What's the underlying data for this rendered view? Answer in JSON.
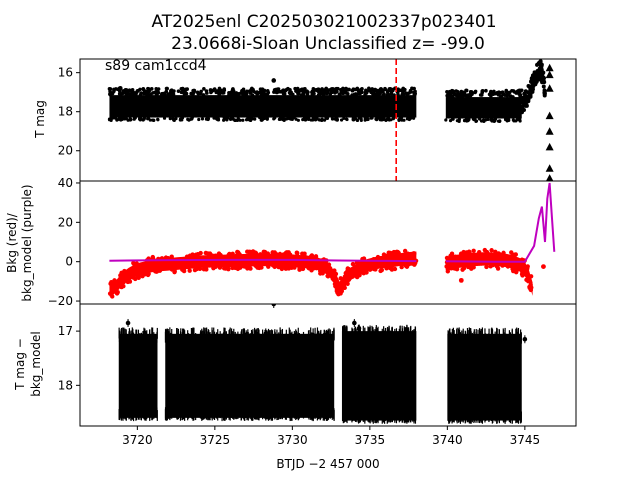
{
  "figure": {
    "title_line1": "AT2025enl  C202503021002337p023401",
    "title_line2": "23.0668i-Sloan Unclassified z= -99.0",
    "xlabel": "BTJD −2 457 000"
  },
  "chart_data": [
    {
      "type": "scatter",
      "panel": "top",
      "ylabel": "T mag",
      "annotation": "s89 cam1ccd4",
      "xlim": [
        3716.3,
        3748.3
      ],
      "ylim": [
        21.55,
        15.3
      ],
      "yticks": [
        16,
        18,
        20
      ],
      "ytick_labels": [
        "16",
        "18",
        "20"
      ],
      "vline": {
        "x": 3736.7,
        "color": "#ff0000",
        "style": "dashed"
      },
      "band_segments": [
        {
          "x0": 3718.2,
          "x1": 3738.0,
          "top": 17.15,
          "bottom": 18.3
        },
        {
          "x0": 3739.9,
          "x1": 3744.8,
          "top": 17.25,
          "bottom": 18.35
        }
      ],
      "rise": [
        [
          3744.8,
          17.7
        ],
        [
          3745.2,
          17.2
        ],
        [
          3745.5,
          16.6
        ],
        [
          3745.8,
          16.0
        ],
        [
          3746.0,
          15.8
        ],
        [
          3746.2,
          16.3
        ],
        [
          3746.3,
          16.9
        ]
      ],
      "outliers": [
        [
          3718.9,
          16.8
        ],
        [
          3728.8,
          16.4
        ]
      ],
      "upper_limits_x": 3746.6,
      "upper_limits": [
        15.75,
        16.1,
        16.8,
        18.2,
        19.0,
        19.8,
        20.9,
        21.4
      ]
    },
    {
      "type": "scatter",
      "panel": "middle",
      "ylabel_line1": "Bkg (red)/",
      "ylabel_line2": "bkg_model (purple)",
      "xlim": [
        3716.3,
        3748.3
      ],
      "ylim": [
        -21.5,
        41.0
      ],
      "yticks": [
        -20,
        0,
        20,
        40
      ],
      "ytick_labels": [
        "−20",
        "0",
        "20",
        "40"
      ],
      "bkg_red_segments": [
        {
          "x": [
            3718.2,
            3718.6,
            3719.0,
            3719.5,
            3720.0,
            3721.0,
            3722.5,
            3724.0,
            3726.0,
            3728.0,
            3730.0,
            3731.5,
            3732.3,
            3732.8,
            3733.0,
            3733.6,
            3734.5,
            3735.5,
            3736.5,
            3737.3,
            3738.0
          ],
          "y": [
            -14.5,
            -13.0,
            -9.0,
            -6.0,
            -4.0,
            -2.0,
            -1.0,
            0.0,
            0.5,
            1.0,
            0.5,
            -0.5,
            -3.5,
            -9.0,
            -14.0,
            -7.0,
            -2.5,
            -0.5,
            0.5,
            1.5,
            2.0
          ],
          "spread": 3.2
        },
        {
          "x": [
            3739.9,
            3740.5,
            3741.5,
            3742.5,
            3743.5,
            3744.2,
            3744.8,
            3745.2,
            3745.5
          ],
          "y": [
            -1.0,
            0.0,
            1.0,
            1.5,
            1.0,
            0.0,
            -2.0,
            -6.0,
            -14.0
          ],
          "spread": 3.4
        }
      ],
      "red_outliers": [
        [
          3740.9,
          -9.5
        ],
        [
          3746.2,
          -2.5
        ]
      ],
      "bkg_model": {
        "x": [
          3718.2,
          3722.0,
          3726.0,
          3730.0,
          3733.0,
          3736.0,
          3738.0,
          3739.9,
          3743.0,
          3745.0,
          3745.6,
          3745.9,
          3746.1,
          3746.3,
          3746.45,
          3746.6,
          3746.75,
          3746.9
        ],
        "y": [
          0.5,
          0.8,
          0.9,
          0.9,
          0.6,
          0.4,
          0.3,
          0.2,
          0.0,
          0.0,
          8.0,
          22.0,
          28.0,
          10.0,
          32.0,
          40.0,
          22.0,
          5.0
        ],
        "color": "#bf00bf"
      }
    },
    {
      "type": "scatter",
      "panel": "bottom",
      "ylabel_line1": "T mag −",
      "ylabel_line2": "bkg_model",
      "xlim": [
        3716.3,
        3748.3
      ],
      "ylim": [
        18.75,
        16.5
      ],
      "yticks": [
        17,
        18
      ],
      "ytick_labels": [
        "17",
        "18"
      ],
      "band_segments": [
        {
          "x0": 3718.8,
          "x1": 3721.3,
          "top": 17.05,
          "bottom": 18.6
        },
        {
          "x0": 3721.8,
          "x1": 3732.7,
          "top": 17.05,
          "bottom": 18.6
        },
        {
          "x0": 3733.2,
          "x1": 3738.0,
          "top": 17.0,
          "bottom": 18.65
        },
        {
          "x0": 3740.0,
          "x1": 3744.8,
          "top": 17.05,
          "bottom": 18.65
        }
      ],
      "outliers": [
        [
          3719.4,
          16.85
        ],
        [
          3728.8,
          16.5
        ],
        [
          3734.0,
          16.85
        ],
        [
          3734.3,
          16.95
        ],
        [
          3741.4,
          17.25
        ],
        [
          3745.0,
          17.15
        ]
      ],
      "xticks": [
        3720,
        3725,
        3730,
        3735,
        3740,
        3745
      ],
      "xtick_labels": [
        "3720",
        "3725",
        "3730",
        "3735",
        "3740",
        "3745"
      ]
    }
  ]
}
